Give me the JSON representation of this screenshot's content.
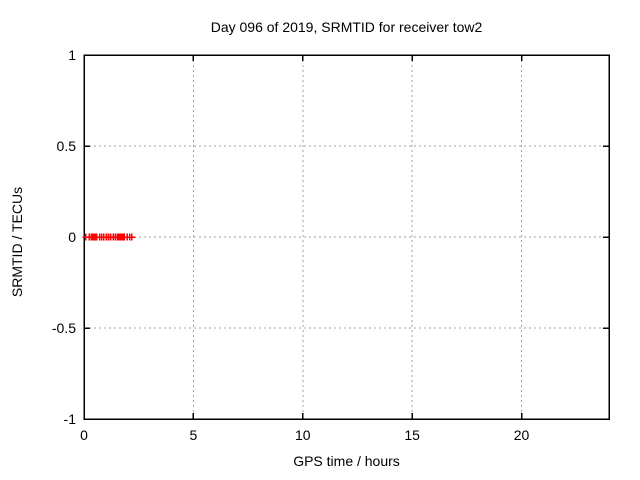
{
  "window": {
    "background": "#ffffff"
  },
  "chart_data": {
    "type": "scatter",
    "title": "Day 096 of 2019, SRMTID for receiver tow2",
    "xlabel": "GPS time / hours",
    "ylabel": "SRMTID / TECUs",
    "xlim": [
      0,
      24
    ],
    "ylim": [
      -1,
      1
    ],
    "xticks": [
      0,
      5,
      10,
      15,
      20
    ],
    "xtick_labels": [
      "0",
      "5",
      "10",
      "15",
      "20"
    ],
    "yticks": [
      -1,
      -0.5,
      0,
      0.5,
      1
    ],
    "ytick_labels": [
      "-1",
      "-0.5",
      "0",
      "0.5",
      "1"
    ],
    "grid": true,
    "legend": "none",
    "axis_color": "#000000",
    "grid_color": "#a0a0a0",
    "series": [
      {
        "name": "SRMTID",
        "marker": "plus",
        "color": "#ff0000",
        "x": [
          0.09,
          0.23,
          0.32,
          0.41,
          0.46,
          0.5,
          0.55,
          0.59,
          0.73,
          0.82,
          0.91,
          1.01,
          1.1,
          1.14,
          1.23,
          1.33,
          1.42,
          1.51,
          1.55,
          1.6,
          1.65,
          1.69,
          1.74,
          1.78,
          1.83,
          1.97,
          2.1,
          2.19
        ],
        "y": [
          0,
          0,
          0,
          0,
          0,
          0,
          0,
          0,
          0,
          0,
          0,
          0,
          0,
          0,
          0,
          0,
          0,
          0,
          0,
          0,
          0,
          0,
          0,
          0,
          0,
          0,
          0,
          0
        ]
      }
    ]
  }
}
